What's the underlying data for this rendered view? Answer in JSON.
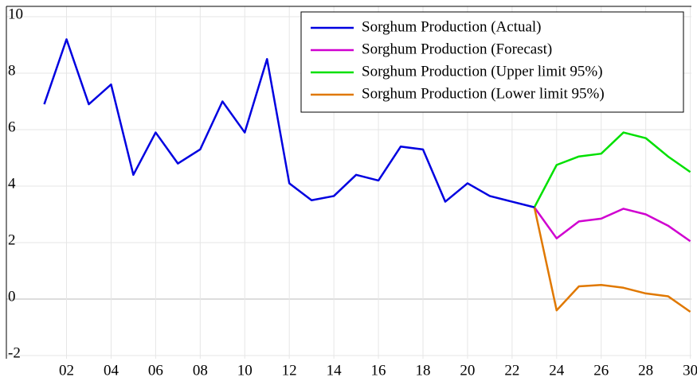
{
  "chart_data": {
    "type": "line",
    "x": [
      2001,
      2002,
      2003,
      2004,
      2005,
      2006,
      2007,
      2008,
      2009,
      2010,
      2011,
      2012,
      2013,
      2014,
      2015,
      2016,
      2017,
      2018,
      2019,
      2020,
      2021,
      2022,
      2023,
      2024,
      2025,
      2026,
      2027,
      2028,
      2029,
      2030
    ],
    "series": [
      {
        "name": "Sorghum Production (Actual)",
        "color": "#0000e0",
        "values": [
          6.9,
          9.2,
          6.9,
          7.6,
          4.4,
          5.9,
          4.8,
          5.3,
          7.0,
          5.9,
          8.5,
          4.1,
          3.5,
          3.65,
          4.4,
          4.2,
          5.4,
          5.3,
          3.45,
          4.1,
          3.65,
          3.45,
          3.25,
          null,
          null,
          null,
          null,
          null,
          null,
          null
        ]
      },
      {
        "name": "Sorghum Production (Forecast)",
        "color": "#d000d0",
        "values": [
          null,
          null,
          null,
          null,
          null,
          null,
          null,
          null,
          null,
          null,
          null,
          null,
          null,
          null,
          null,
          null,
          null,
          null,
          null,
          null,
          null,
          null,
          3.25,
          2.15,
          2.75,
          2.85,
          3.2,
          3.0,
          2.6,
          2.05
        ]
      },
      {
        "name": "Sorghum Production (Upper limit 95%)",
        "color": "#00e000",
        "values": [
          null,
          null,
          null,
          null,
          null,
          null,
          null,
          null,
          null,
          null,
          null,
          null,
          null,
          null,
          null,
          null,
          null,
          null,
          null,
          null,
          null,
          null,
          3.25,
          4.75,
          5.05,
          5.15,
          5.9,
          5.7,
          5.05,
          4.5
        ]
      },
      {
        "name": "Sorghum Production (Lower limit 95%)",
        "color": "#e07800",
        "values": [
          null,
          null,
          null,
          null,
          null,
          null,
          null,
          null,
          null,
          null,
          null,
          null,
          null,
          null,
          null,
          null,
          null,
          null,
          null,
          null,
          null,
          null,
          3.25,
          -0.4,
          0.45,
          0.5,
          0.4,
          0.2,
          0.1,
          -0.45
        ]
      }
    ],
    "xlim": [
      1999.3,
      2030.05
    ],
    "xticks": [
      {
        "value": 2002,
        "label": "02"
      },
      {
        "value": 2004,
        "label": "04"
      },
      {
        "value": 2006,
        "label": "06"
      },
      {
        "value": 2008,
        "label": "08"
      },
      {
        "value": 2010,
        "label": "10"
      },
      {
        "value": 2012,
        "label": "12"
      },
      {
        "value": 2014,
        "label": "14"
      },
      {
        "value": 2016,
        "label": "16"
      },
      {
        "value": 2018,
        "label": "18"
      },
      {
        "value": 2020,
        "label": "20"
      },
      {
        "value": 2022,
        "label": "22"
      },
      {
        "value": 2024,
        "label": "24"
      },
      {
        "value": 2026,
        "label": "26"
      },
      {
        "value": 2028,
        "label": "28"
      },
      {
        "value": 2030,
        "label": "30"
      }
    ],
    "ylim": [
      -2,
      10
    ],
    "yticks": [
      -2,
      0,
      2,
      4,
      6,
      8,
      10
    ],
    "grid": true,
    "legend": "top-right"
  }
}
